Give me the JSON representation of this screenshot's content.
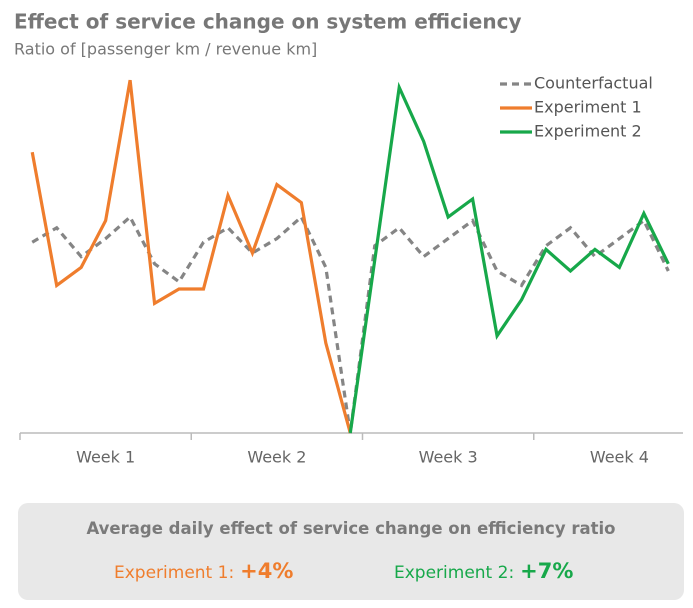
{
  "chart_data": {
    "type": "line",
    "title": "Effect of service change on system efficiency",
    "subtitle": "Ratio of [passenger km / revenue km]",
    "x": [
      0,
      1,
      2,
      3,
      4,
      5,
      6,
      7,
      8,
      9,
      10,
      11,
      12,
      13,
      14,
      15,
      16,
      17,
      18,
      19,
      20,
      21,
      22,
      23,
      24,
      25,
      26
    ],
    "xlim": [
      -0.5,
      26.6
    ],
    "xticks": [
      {
        "value": 3,
        "label": "Week 1"
      },
      {
        "value": 10,
        "label": "Week 2"
      },
      {
        "value": 17,
        "label": "Week 3"
      },
      {
        "value": 24,
        "label": "Week 4"
      }
    ],
    "xtick_marks": [
      -0.5,
      6.5,
      13.5,
      20.5
    ],
    "ylim": [
      0,
      100
    ],
    "legend": "top-right",
    "series": [
      {
        "name": "Counterfactual",
        "color": "#858585",
        "style": "dashed",
        "values": [
          53,
          57,
          49,
          54,
          60,
          47,
          42,
          53,
          57,
          50,
          54,
          60,
          46,
          0,
          52,
          57,
          49,
          54,
          59,
          45,
          41,
          52,
          57,
          49,
          54,
          59,
          45
        ]
      },
      {
        "name": "Experiment 1",
        "color": "#ef7d2d",
        "style": "solid",
        "values": [
          78,
          41,
          46,
          59,
          98,
          36,
          40,
          40,
          66,
          50,
          69,
          64,
          25,
          0,
          null,
          null,
          null,
          null,
          null,
          null,
          null,
          null,
          null,
          null,
          null,
          null,
          null
        ]
      },
      {
        "name": "Experiment 2",
        "color": "#17a84a",
        "style": "solid",
        "values": [
          null,
          null,
          null,
          null,
          null,
          null,
          null,
          null,
          null,
          null,
          null,
          null,
          null,
          0,
          48,
          96,
          81,
          60,
          65,
          27,
          37,
          51,
          45,
          51,
          46,
          61,
          47
        ]
      }
    ]
  },
  "summary": {
    "title": "Average daily effect of service change on efficiency ratio",
    "items": [
      {
        "label": "Experiment 1:",
        "value": "+4%"
      },
      {
        "label": "Experiment 2:",
        "value": "+7%"
      }
    ]
  }
}
